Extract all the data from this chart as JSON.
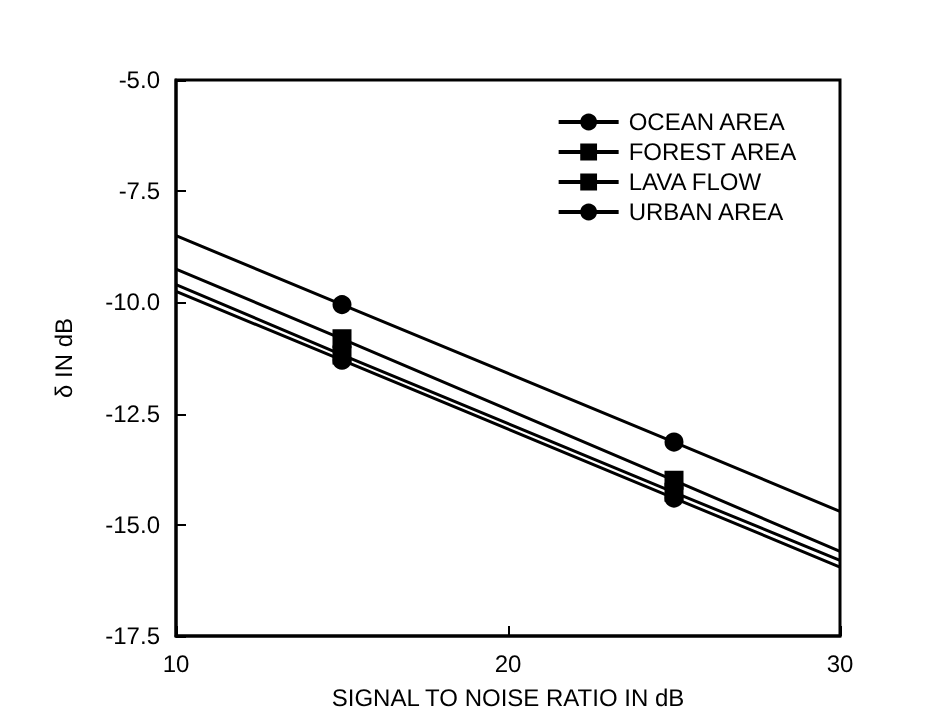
{
  "chart_data": {
    "type": "line",
    "xlabel": "SIGNAL TO NOISE RATIO IN dB",
    "ylabel": "δ IN dB",
    "x": [
      10,
      15,
      25,
      30
    ],
    "series": [
      {
        "name": "OCEAN AREA",
        "color": "#000000",
        "marker": "circle",
        "values": [
          -8.5,
          -10.05,
          -13.14,
          -14.7
        ]
      },
      {
        "name": "FOREST AREA",
        "color": "#000000",
        "marker": "square",
        "values": [
          -9.25,
          -10.82,
          -14.0,
          -15.6
        ]
      },
      {
        "name": "LAVA FLOW",
        "color": "#000000",
        "marker": "square",
        "values": [
          -9.6,
          -11.18,
          -14.27,
          -15.8
        ]
      },
      {
        "name": "URBAN AREA",
        "color": "#000000",
        "marker": "circle",
        "values": [
          -9.75,
          -11.3,
          -14.4,
          -15.95
        ]
      }
    ],
    "xlim": [
      10,
      30
    ],
    "xticks": [
      10,
      20,
      30
    ],
    "ylim": [
      -17.5,
      -5
    ],
    "yticks": [
      {
        "value": -17.5,
        "label": "-17.5"
      },
      {
        "value": -15,
        "label": "-15.0"
      },
      {
        "value": -12.5,
        "label": "-12.5"
      },
      {
        "value": -10,
        "label": "-10.0"
      },
      {
        "value": -7.5,
        "label": "-7.5"
      },
      {
        "value": -5,
        "label": "-5.0"
      }
    ],
    "grid": false,
    "legend": "top right",
    "line_style": "solid"
  }
}
